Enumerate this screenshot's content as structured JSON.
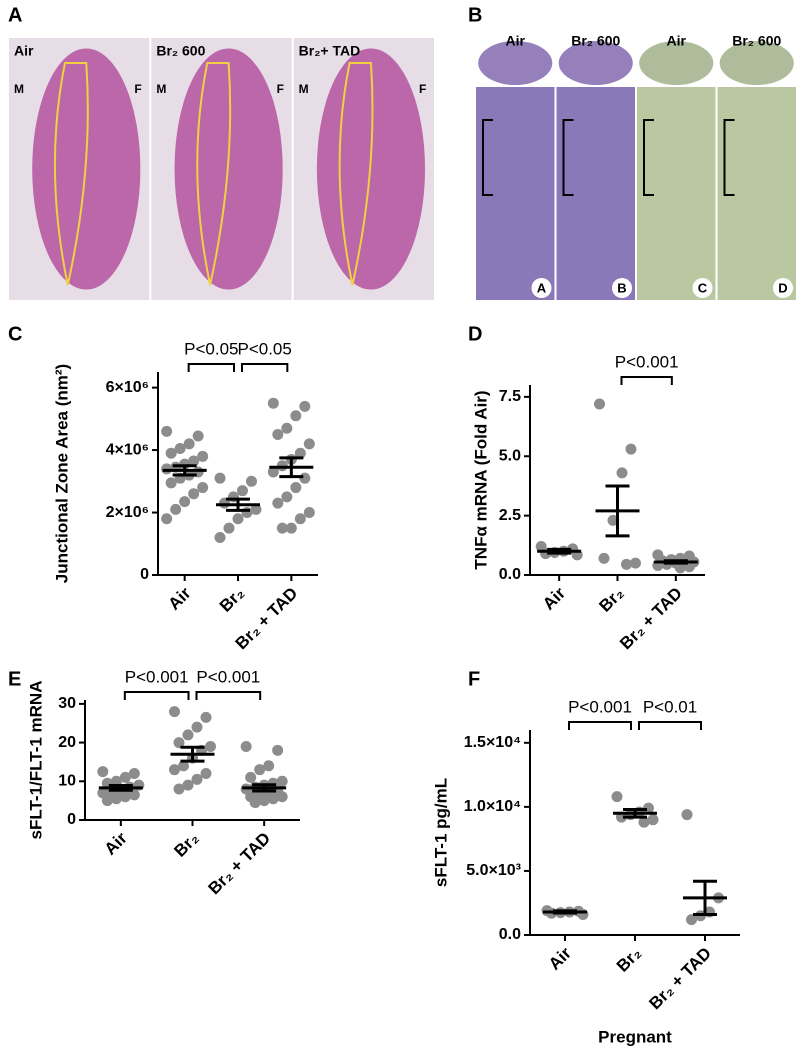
{
  "image_panels": [
    {
      "letter": "A",
      "tiles": [
        {
          "label": "Air",
          "marks": [
            "M",
            "F"
          ]
        },
        {
          "label": "Br₂ 600",
          "marks": [
            "M",
            "F"
          ]
        },
        {
          "label": "Br₂+ TAD",
          "marks": [
            "M",
            "F"
          ]
        }
      ]
    },
    {
      "letter": "B",
      "tiles": [
        {
          "label": "Air",
          "tag": "A"
        },
        {
          "label": "Br₂ 600",
          "tag": "B"
        },
        {
          "label": "Air",
          "tag": "C"
        },
        {
          "label": "Br₂ 600",
          "tag": "D"
        }
      ]
    }
  ],
  "chart_data": [
    {
      "type": "dotplot",
      "panel": "C",
      "y_label": "Junctional Zone Area (nm²)",
      "color": "#8c8c8c",
      "categories": [
        "Air",
        "Br₂",
        "Br₂ + TAD"
      ],
      "points": [
        [
          4600000,
          4450000,
          4200000,
          4050000,
          3900000,
          3800000,
          3650000,
          3550000,
          3450000,
          3400000,
          3300000,
          3200000,
          3100000,
          2950000,
          2800000,
          2600000,
          2350000,
          2100000,
          1800000
        ],
        [
          3100000,
          3000000,
          2700000,
          2500000,
          2300000,
          2100000,
          2000000,
          1800000,
          1500000,
          1200000
        ],
        [
          5500000,
          5400000,
          5100000,
          4700000,
          4500000,
          4200000,
          3900000,
          3700000,
          3500000,
          3300000,
          3100000,
          2800000,
          2500000,
          2300000,
          2000000,
          1800000,
          1500000,
          1500000
        ]
      ],
      "mean": [
        3350000,
        2250000,
        3450000
      ],
      "sem": [
        150000,
        180000,
        300000
      ],
      "ylim": [
        0,
        6500000
      ],
      "yticks": [
        0,
        {
          "value": 2000000,
          "label": "2×10⁶"
        },
        {
          "value": 4000000,
          "label": "4×10⁶"
        },
        {
          "value": 6000000,
          "label": "6×10⁶"
        }
      ],
      "brackets": [
        {
          "between": [
            "Air",
            "Br₂"
          ],
          "label": "P<0.05"
        },
        {
          "between": [
            "Br₂",
            "Br₂ + TAD"
          ],
          "label": "P<0.05"
        }
      ]
    },
    {
      "type": "dotplot",
      "panel": "D",
      "y_label": "TNFα mRNA (Fold Air)",
      "color": "#8c8c8c",
      "categories": [
        "Air",
        "Br₂",
        "Br₂ + TAD"
      ],
      "points": [
        [
          1.2,
          1.1,
          1.0,
          0.95,
          0.9,
          0.85
        ],
        [
          7.2,
          5.3,
          4.3,
          2.3,
          0.7,
          0.5,
          0.45
        ],
        [
          0.85,
          0.8,
          0.7,
          0.65,
          0.6,
          0.55,
          0.5,
          0.5,
          0.45,
          0.4,
          0.35,
          0.3
        ]
      ],
      "mean": [
        1.0,
        2.7,
        0.55
      ],
      "sem": [
        0.08,
        1.05,
        0.05
      ],
      "ylim": [
        0,
        8
      ],
      "yticks": [
        {
          "value": 0,
          "label": "0.0"
        },
        2.5,
        {
          "value": 5,
          "label": "5.0"
        },
        7.5
      ],
      "brackets": [
        {
          "between": [
            "Br₂",
            "Br₂ + TAD"
          ],
          "label": "P<0.001"
        }
      ]
    },
    {
      "type": "dotplot",
      "panel": "E",
      "y_label": "sFLT-1/FLT-1 mRNA",
      "color": "#8c8c8c",
      "categories": [
        "Air",
        "Br₂",
        "Br₂ + TAD"
      ],
      "points": [
        [
          12.5,
          12,
          11,
          10,
          9.5,
          9,
          8.5,
          8,
          7.5,
          7,
          6.5,
          6,
          5.5,
          5
        ],
        [
          28,
          26.5,
          24,
          22,
          20,
          19,
          18,
          16,
          14,
          13,
          12,
          10.5,
          9,
          8
        ],
        [
          19,
          18,
          14,
          13,
          11,
          10,
          9.5,
          9,
          8.5,
          8,
          7.5,
          7,
          6.5,
          6,
          6,
          5.5,
          5,
          4.5
        ]
      ],
      "mean": [
        8.3,
        17,
        8.3
      ],
      "sem": [
        0.6,
        1.8,
        0.8
      ],
      "ylim": [
        0,
        31
      ],
      "yticks": [
        0,
        10,
        20,
        30
      ],
      "brackets": [
        {
          "between": [
            "Air",
            "Br₂"
          ],
          "label": "P<0.001"
        },
        {
          "between": [
            "Br₂",
            "Br₂ + TAD"
          ],
          "label": "P<0.001"
        }
      ]
    },
    {
      "type": "dotplot",
      "panel": "F",
      "y_label": "sFLT-1 pg/mL",
      "x_label": "Pregnant",
      "color": "#8c8c8c",
      "categories": [
        "Air",
        "Br₂",
        "Br₂ + TAD"
      ],
      "points": [
        [
          1900,
          1850,
          1800,
          1750,
          1700,
          1600
        ],
        [
          10800,
          9900,
          9600,
          9400,
          9200,
          9000,
          8800
        ],
        [
          9400,
          2900,
          1800,
          1500,
          1200
        ]
      ],
      "mean": [
        1800,
        9500,
        2900
      ],
      "sem": [
        80,
        300,
        1300
      ],
      "ylim": [
        0,
        16000
      ],
      "yticks": [
        {
          "value": 0,
          "label": "0.0"
        },
        {
          "value": 5000,
          "label": "5.0×10³"
        },
        {
          "value": 10000,
          "label": "1.0×10⁴"
        },
        {
          "value": 15000,
          "label": "1.5×10⁴"
        }
      ],
      "brackets": [
        {
          "between": [
            "Air",
            "Br₂"
          ],
          "label": "P<0.001"
        },
        {
          "between": [
            "Br₂",
            "Br₂ + TAD"
          ],
          "label": "P<0.01"
        }
      ]
    }
  ]
}
